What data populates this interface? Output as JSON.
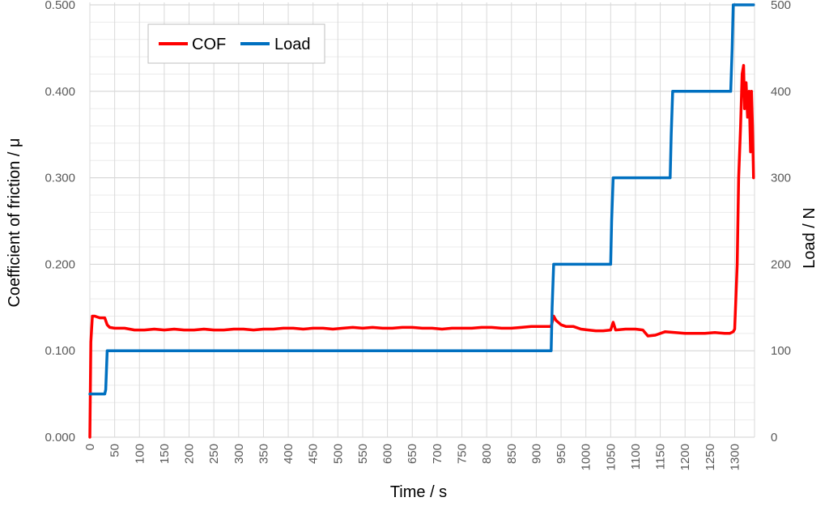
{
  "chart_data": {
    "type": "line",
    "title": "",
    "xlabel": "Time / s",
    "ylabel_left": "Coefficient of friction / μ",
    "ylabel_right": "Load / N",
    "xlim": [
      0,
      1340
    ],
    "ylim_left": [
      0,
      0.5
    ],
    "ylim_right": [
      0,
      500
    ],
    "x_ticks": [
      0,
      50,
      100,
      150,
      200,
      250,
      300,
      350,
      400,
      450,
      500,
      550,
      600,
      650,
      700,
      750,
      800,
      850,
      900,
      950,
      1000,
      1050,
      1100,
      1150,
      1200,
      1250,
      1300
    ],
    "x_tick_labels": [
      "0",
      "50",
      "100",
      "150",
      "200",
      "250",
      "300",
      "350",
      "400",
      "450",
      "500",
      "550",
      "600",
      "650",
      "700",
      "750",
      "800",
      "850",
      "900",
      "950",
      "1000",
      "1050",
      "1100",
      "1150",
      "1200",
      "1250",
      "1300"
    ],
    "y_left_ticks": [
      0,
      0.1,
      0.2,
      0.3,
      0.4,
      0.5
    ],
    "y_left_tick_labels": [
      "0.000",
      "0.100",
      "0.200",
      "0.300",
      "0.400",
      "0.500"
    ],
    "y_right_ticks": [
      0,
      100,
      200,
      300,
      400,
      500
    ],
    "y_right_tick_labels": [
      "0",
      "100",
      "200",
      "300",
      "400",
      "500"
    ],
    "grid": true,
    "legend_position": "top-left",
    "series": [
      {
        "name": "COF",
        "axis": "left",
        "color": "#ff0000",
        "x": [
          0,
          2,
          5,
          10,
          20,
          30,
          35,
          40,
          50,
          70,
          90,
          110,
          130,
          150,
          170,
          190,
          210,
          230,
          250,
          270,
          290,
          310,
          330,
          350,
          370,
          390,
          410,
          430,
          450,
          470,
          490,
          510,
          530,
          550,
          570,
          590,
          610,
          630,
          650,
          670,
          690,
          710,
          730,
          750,
          770,
          790,
          810,
          830,
          850,
          870,
          890,
          910,
          930,
          935,
          940,
          950,
          960,
          975,
          990,
          1005,
          1020,
          1035,
          1050,
          1055,
          1060,
          1080,
          1100,
          1115,
          1125,
          1140,
          1160,
          1180,
          1200,
          1220,
          1240,
          1260,
          1280,
          1290,
          1297,
          1300,
          1305,
          1308,
          1312,
          1315,
          1318,
          1320,
          1323,
          1326,
          1329,
          1332,
          1334,
          1336,
          1338
        ],
        "y": [
          0.0,
          0.11,
          0.14,
          0.14,
          0.138,
          0.138,
          0.13,
          0.127,
          0.126,
          0.126,
          0.124,
          0.124,
          0.125,
          0.124,
          0.125,
          0.124,
          0.124,
          0.125,
          0.124,
          0.124,
          0.125,
          0.125,
          0.124,
          0.125,
          0.125,
          0.126,
          0.126,
          0.125,
          0.126,
          0.126,
          0.125,
          0.126,
          0.127,
          0.126,
          0.127,
          0.126,
          0.126,
          0.127,
          0.127,
          0.126,
          0.126,
          0.125,
          0.126,
          0.126,
          0.126,
          0.127,
          0.127,
          0.126,
          0.126,
          0.127,
          0.128,
          0.128,
          0.128,
          0.14,
          0.135,
          0.13,
          0.128,
          0.128,
          0.125,
          0.124,
          0.123,
          0.123,
          0.124,
          0.133,
          0.124,
          0.125,
          0.125,
          0.124,
          0.117,
          0.118,
          0.122,
          0.121,
          0.12,
          0.12,
          0.12,
          0.121,
          0.12,
          0.12,
          0.122,
          0.125,
          0.2,
          0.3,
          0.36,
          0.42,
          0.43,
          0.38,
          0.41,
          0.37,
          0.4,
          0.33,
          0.4,
          0.36,
          0.3
        ]
      },
      {
        "name": "Load",
        "axis": "right",
        "color": "#0070c0",
        "x": [
          0,
          15,
          30,
          32,
          35,
          60,
          120,
          200,
          300,
          400,
          500,
          600,
          700,
          800,
          900,
          930,
          932,
          935,
          1000,
          1050,
          1052,
          1055,
          1100,
          1170,
          1172,
          1175,
          1250,
          1292,
          1295,
          1297,
          1338
        ],
        "y": [
          50,
          50,
          50,
          55,
          100,
          100,
          100,
          100,
          100,
          100,
          100,
          100,
          100,
          100,
          100,
          100,
          150,
          200,
          200,
          200,
          250,
          300,
          300,
          300,
          350,
          400,
          400,
          400,
          450,
          500,
          500
        ]
      }
    ]
  }
}
